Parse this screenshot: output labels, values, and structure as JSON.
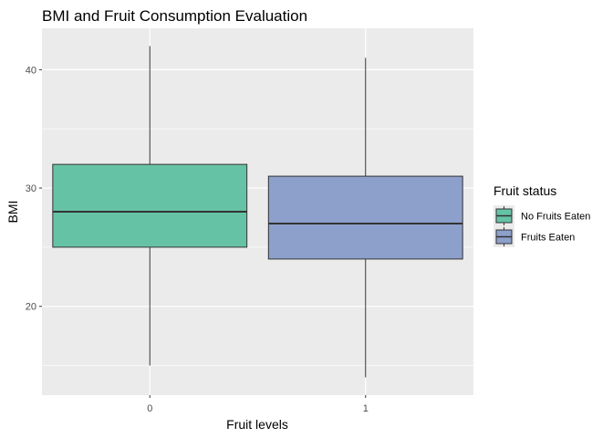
{
  "chart_data": {
    "type": "boxplot",
    "title": "BMI and Fruit Consumption Evaluation",
    "xlabel": "Fruit levels",
    "ylabel": "BMI",
    "ylim": [
      12.5,
      43.5
    ],
    "y_ticks": [
      20,
      30,
      40
    ],
    "categories": [
      "0",
      "1"
    ],
    "grid": true,
    "legend": {
      "title": "Fruit status",
      "position": "right",
      "entries": [
        {
          "label": "No Fruits Eaten",
          "color": "#66c2a5"
        },
        {
          "label": "Fruits Eaten",
          "color": "#8da0cb"
        }
      ]
    },
    "series": [
      {
        "category": "0",
        "name": "No Fruits Eaten",
        "color": "#66c2a5",
        "min": 15,
        "q1": 25,
        "median": 28,
        "q3": 32,
        "max": 42
      },
      {
        "category": "1",
        "name": "Fruits Eaten",
        "color": "#8da0cb",
        "min": 14,
        "q1": 24,
        "median": 27,
        "q3": 31,
        "max": 41
      }
    ]
  }
}
